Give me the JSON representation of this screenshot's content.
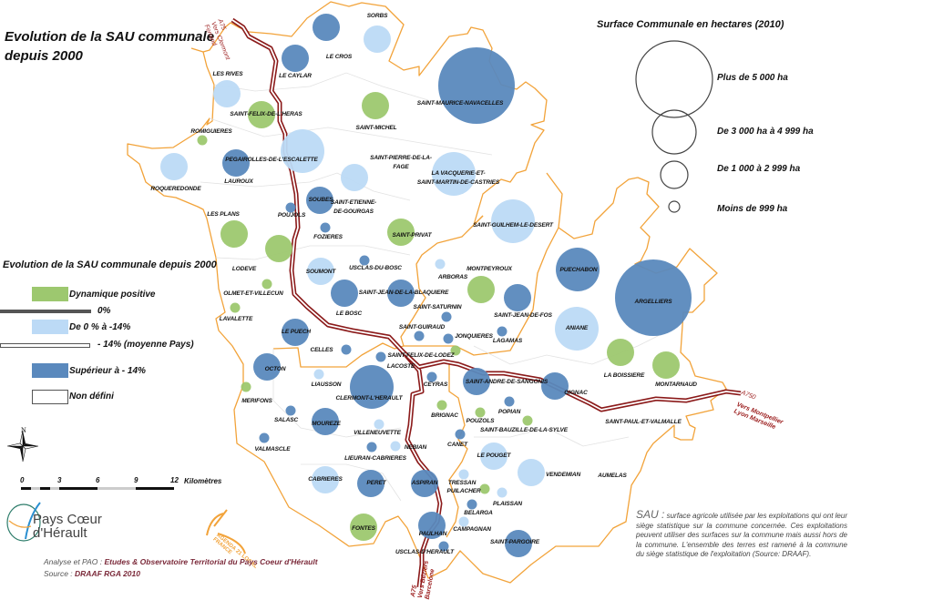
{
  "title": "Evolution de la SAU communale\ndepuis 2000",
  "colors": {
    "positive": "#9dc86f",
    "light_decline": "#bcdaf6",
    "strong_decline": "#5a89bd",
    "boundary": "#f2a33a",
    "road": "#8b1a1a"
  },
  "evolution_legend": {
    "title": "Evolution de la SAU communale depuis 2000",
    "items": [
      {
        "label": "Dynamique positive"
      },
      {
        "label": "0%"
      },
      {
        "label": "De 0 % à -14%"
      },
      {
        "label": "- 14% (moyenne Pays)"
      },
      {
        "label": "Supérieur à - 14%"
      },
      {
        "label": "Non défini"
      }
    ]
  },
  "surface_legend": {
    "title": "Surface Communale en hectares (2010)",
    "items": [
      {
        "label": "Plus de 5 000 ha"
      },
      {
        "label": "De 3 000 ha à 4 999 ha"
      },
      {
        "label": "De 1 000 à 2 999 ha"
      },
      {
        "label": "Moins de 999 ha"
      }
    ]
  },
  "north_label": "N",
  "scale": {
    "ticks": [
      "0",
      "3",
      "6",
      "9",
      "12"
    ],
    "unit": "Kilomètres"
  },
  "roads": {
    "north": "A75\nVers Clermont\nFerrand",
    "east_id": "A750",
    "east": "Vers Montpellier\nLyon Marseille",
    "south": "A75\nVers Béziers\nBarcelone"
  },
  "logos": {
    "pays": "Pays Cœur d'Hérault",
    "agenda": "AGENDA 21 LOCAL FRANCE"
  },
  "credits": {
    "line1_prefix": "Analyse et PAO : ",
    "line1_value": "Etudes & Observatoire Territorial du Pays Coeur d'Hérault",
    "line2_prefix": "Source : ",
    "line2_value": "DRAAF RGA 2010"
  },
  "note": {
    "term": "SAU :",
    "text": " surface agricole utilisée par les exploitations qui ont leur siège statistique sur la commune concernée. Ces exploitations peuvent utiliser des surfaces sur la commune mais aussi hors de la commune. L'ensemble des terres est ramené à la commune du siège statistique de l'exploitation (Source: DRAAF)."
  },
  "communes": [
    {
      "name": "LE CROS",
      "evolution": "below_-14",
      "surface": "1000-2999"
    },
    {
      "name": "SORBS",
      "evolution": "0_to_-14",
      "surface": "1000-2999"
    },
    {
      "name": "LE CAYLAR",
      "evolution": "below_-14",
      "surface": "1000-2999"
    },
    {
      "name": "LES RIVES",
      "evolution": "0_to_-14",
      "surface": "1000-2999"
    },
    {
      "name": "SAINT-FELIX-DE-L'HERAS",
      "evolution": "positive",
      "surface": "1000-2999"
    },
    {
      "name": "SAINT-MICHEL",
      "evolution": "positive",
      "surface": "1000-2999"
    },
    {
      "name": "SAINT-MAURICE-NAVACELLES",
      "evolution": "below_-14",
      "surface": "5000+"
    },
    {
      "name": "ROMIGUIERES",
      "evolution": "positive",
      "surface": "<999"
    },
    {
      "name": "PEGAIROLLES-DE-L'ESCALETTE",
      "evolution": "0_to_-14",
      "surface": "3000-4999"
    },
    {
      "name": "SAINT-PIERRE-DE-LA-\nFAGE",
      "evolution": "0_to_-14",
      "surface": "1000-2999"
    },
    {
      "name": "LAUROUX",
      "evolution": "below_-14",
      "surface": "1000-2999"
    },
    {
      "name": "ROQUEREDONDE",
      "evolution": "0_to_-14",
      "surface": "1000-2999"
    },
    {
      "name": "LA VACQUERIE-ET-\nSAINT-MARTIN-DE-CASTRIES",
      "evolution": "0_to_-14",
      "surface": "3000-4999"
    },
    {
      "name": "SOUBES",
      "evolution": "below_-14",
      "surface": "1000-2999"
    },
    {
      "name": "SAINT-ETIENNE-\nDE-GOURGAS",
      "evolution": null,
      "surface": null
    },
    {
      "name": "POUJOLS",
      "evolution": "below_-14",
      "surface": "<999"
    },
    {
      "name": "LES PLANS",
      "evolution": "positive",
      "surface": "1000-2999"
    },
    {
      "name": "FOZIERES",
      "evolution": "below_-14",
      "surface": "<999"
    },
    {
      "name": "SAINT-GUILHEM-LE-DESERT",
      "evolution": "0_to_-14",
      "surface": "3000-4999"
    },
    {
      "name": "SAINT-PRIVAT",
      "evolution": "positive",
      "surface": "1000-2999"
    },
    {
      "name": "LODEVE",
      "evolution": "positive",
      "surface": "1000-2999"
    },
    {
      "name": "USCLAS-DU-BOSC",
      "evolution": "below_-14",
      "surface": "<999"
    },
    {
      "name": "SOUMONT",
      "evolution": "0_to_-14",
      "surface": "1000-2999"
    },
    {
      "name": "ARBORAS",
      "evolution": "0_to_-14",
      "surface": "<999"
    },
    {
      "name": "MONTPEYROUX",
      "evolution": "positive",
      "surface": "1000-2999"
    },
    {
      "name": "PUECHABON",
      "evolution": "below_-14",
      "surface": "3000-4999"
    },
    {
      "name": "ARGELLIERS",
      "evolution": "below_-14",
      "surface": "5000+"
    },
    {
      "name": "OLMET-ET-VILLECUN",
      "evolution": "positive",
      "surface": "<999"
    },
    {
      "name": "SAINT-JEAN-DE-LA-BLAQUIERE",
      "evolution": "below_-14",
      "surface": "1000-2999"
    },
    {
      "name": "LE BOSC",
      "evolution": "below_-14",
      "surface": "1000-2999"
    },
    {
      "name": "SAINT-JEAN-DE-FOS",
      "evolution": "below_-14",
      "surface": "1000-2999"
    },
    {
      "name": "SAINT-SATURNIN",
      "evolution": "below_-14",
      "surface": "<999"
    },
    {
      "name": "LAVALETTE",
      "evolution": "positive",
      "surface": "<999"
    },
    {
      "name": "ANIANE",
      "evolution": "0_to_-14",
      "surface": "3000-4999"
    },
    {
      "name": "SAINT-GUIRAUD",
      "evolution": "below_-14",
      "surface": "<999"
    },
    {
      "name": "JONQUIERES",
      "evolution": "below_-14",
      "surface": "<999"
    },
    {
      "name": "LAGAMAS",
      "evolution": "below_-14",
      "surface": "<999"
    },
    {
      "name": "LE PUECH",
      "evolution": "below_-14",
      "surface": "1000-2999"
    },
    {
      "name": "CELLES",
      "evolution": "below_-14",
      "surface": "<999"
    },
    {
      "name": "SAINT-FELIX-DE-LODEZ",
      "evolution": "positive",
      "surface": "<999"
    },
    {
      "name": "LA BOISSIERE",
      "evolution": "positive",
      "surface": "1000-2999"
    },
    {
      "name": "MONTARNAUD",
      "evolution": "positive",
      "surface": "1000-2999"
    },
    {
      "name": "OCTON",
      "evolution": "below_-14",
      "surface": "1000-2999"
    },
    {
      "name": "LACOSTE",
      "evolution": "below_-14",
      "surface": "<999"
    },
    {
      "name": "LIAUSSON",
      "evolution": "0_to_-14",
      "surface": "<999"
    },
    {
      "name": "CLERMONT-L'HERAULT",
      "evolution": "below_-14",
      "surface": "3000-4999"
    },
    {
      "name": "CEYRAS",
      "evolution": "below_-14",
      "surface": "<999"
    },
    {
      "name": "SAINT-ANDRE-DE-SANGONIS",
      "evolution": "below_-14",
      "surface": "1000-2999"
    },
    {
      "name": "GIGNAC",
      "evolution": "below_-14",
      "surface": "1000-2999"
    },
    {
      "name": "MERIFONS",
      "evolution": "positive",
      "surface": "<999"
    },
    {
      "name": "BRIGNAC",
      "evolution": "positive",
      "surface": "<999"
    },
    {
      "name": "POPIAN",
      "evolution": "below_-14",
      "surface": "<999"
    },
    {
      "name": "SALASC",
      "evolution": "below_-14",
      "surface": "<999"
    },
    {
      "name": "MOUREZE",
      "evolution": "below_-14",
      "surface": "1000-2999"
    },
    {
      "name": "POUZOLS",
      "evolution": "positive",
      "surface": "<999"
    },
    {
      "name": "SAINT-BAUZILLE-DE-LA-SYLVE",
      "evolution": "positive",
      "surface": "<999"
    },
    {
      "name": "SAINT-PAUL-ET-VALMALLE",
      "evolution": null,
      "surface": null
    },
    {
      "name": "VILLENEUVETTE",
      "evolution": "0_to_-14",
      "surface": "<999"
    },
    {
      "name": "VALMASCLE",
      "evolution": "below_-14",
      "surface": "<999"
    },
    {
      "name": "CANET",
      "evolution": "below_-14",
      "surface": "<999"
    },
    {
      "name": "LIEURAN-CABRIERES",
      "evolution": "below_-14",
      "surface": "<999"
    },
    {
      "name": "NEBIAN",
      "evolution": "0_to_-14",
      "surface": "<999"
    },
    {
      "name": "LE POUGET",
      "evolution": "0_to_-14",
      "surface": "1000-2999"
    },
    {
      "name": "VENDEMIAN",
      "evolution": "0_to_-14",
      "surface": "1000-2999"
    },
    {
      "name": "AUMELAS",
      "evolution": null,
      "surface": null
    },
    {
      "name": "CABRIERES",
      "evolution": "0_to_-14",
      "surface": "1000-2999"
    },
    {
      "name": "PERET",
      "evolution": "below_-14",
      "surface": "1000-2999"
    },
    {
      "name": "ASPIRAN",
      "evolution": "below_-14",
      "surface": "1000-2999"
    },
    {
      "name": "TRESSAN",
      "evolution": "0_to_-14",
      "surface": "<999"
    },
    {
      "name": "PUILACHER",
      "evolution": "positive",
      "surface": "<999"
    },
    {
      "name": "PLAISSAN",
      "evolution": "0_to_-14",
      "surface": "<999"
    },
    {
      "name": "BELARGA",
      "evolution": "below_-14",
      "surface": "<999"
    },
    {
      "name": "FONTES",
      "evolution": "positive",
      "surface": "1000-2999"
    },
    {
      "name": "PAULHAN",
      "evolution": "below_-14",
      "surface": "1000-2999"
    },
    {
      "name": "CAMPAGNAN",
      "evolution": "0_to_-14",
      "surface": "<999"
    },
    {
      "name": "SAINT-PARGOIRE",
      "evolution": "below_-14",
      "surface": "1000-2999"
    },
    {
      "name": "USCLAS-D'HERAULT",
      "evolution": "below_-14",
      "surface": "<999"
    }
  ]
}
